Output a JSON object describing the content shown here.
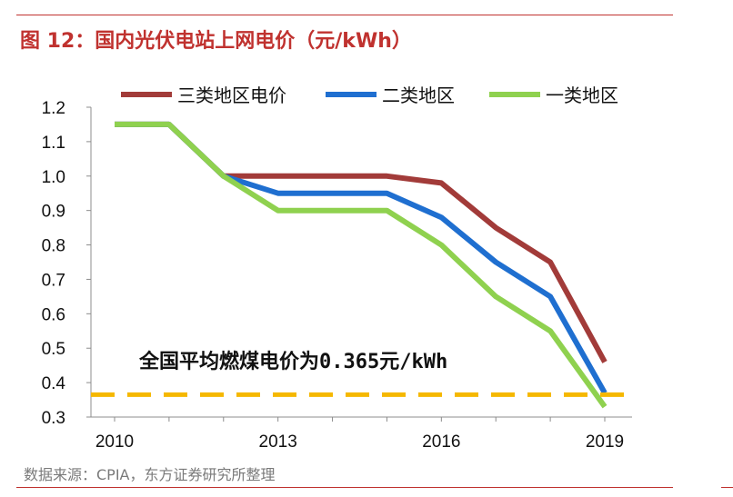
{
  "figure": {
    "title": "图 12：国内光伏电站上网电价（元/kWh）",
    "source": "数据来源：CPIA，东方证券研究所整理"
  },
  "chart_data": {
    "type": "line",
    "x": [
      2010,
      2011,
      2012,
      2013,
      2014,
      2015,
      2016,
      2017,
      2018,
      2019
    ],
    "x_tick_labels": [
      "2010",
      "2013",
      "2016",
      "2019"
    ],
    "x_tick_values": [
      2010,
      2013,
      2016,
      2019
    ],
    "ylim": [
      0.3,
      1.2
    ],
    "y_ticks": [
      "0.3",
      "0.4",
      "0.5",
      "0.6",
      "0.7",
      "0.8",
      "0.9",
      "1.0",
      "1.1",
      "1.2"
    ],
    "y_tick_values": [
      0.3,
      0.4,
      0.5,
      0.6,
      0.7,
      0.8,
      0.9,
      1.0,
      1.1,
      1.2
    ],
    "grid": false,
    "legend_position": "top",
    "series": [
      {
        "name": "三类地区电价",
        "color": "#a23b39",
        "values": [
          1.15,
          1.15,
          1.0,
          1.0,
          1.0,
          1.0,
          0.98,
          0.85,
          0.75,
          0.46
        ]
      },
      {
        "name": "二类地区",
        "color": "#1f6fd0",
        "values": [
          1.15,
          1.15,
          1.0,
          0.95,
          0.95,
          0.95,
          0.88,
          0.75,
          0.65,
          0.37
        ]
      },
      {
        "name": "一类地区",
        "color": "#8fd14f",
        "values": [
          1.15,
          1.15,
          1.0,
          0.9,
          0.9,
          0.9,
          0.8,
          0.65,
          0.55,
          0.33
        ]
      }
    ],
    "reference_line": {
      "value": 0.365,
      "color": "#f5b800",
      "label": "全国平均燃煤电价为0.365元/kWh"
    }
  }
}
